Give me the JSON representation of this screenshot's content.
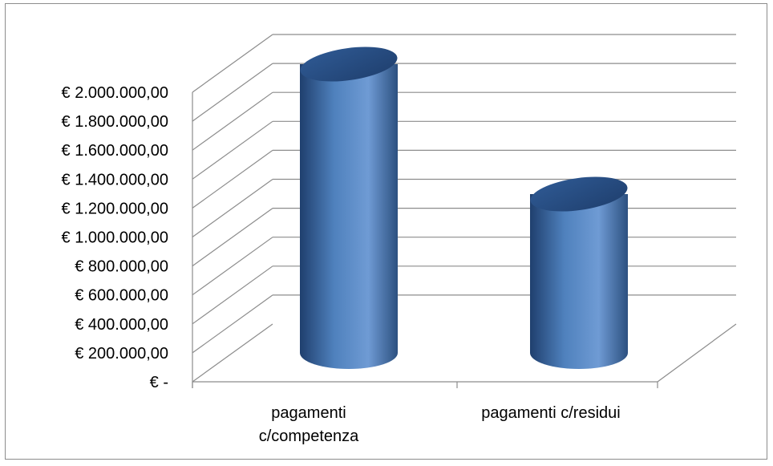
{
  "chart_data": {
    "type": "bar",
    "style": "3d-cylinder",
    "categories": [
      "pagamenti c/competenza",
      "pagamenti c/residui"
    ],
    "category_lines": [
      [
        "pagamenti",
        "c/competenza"
      ],
      [
        "pagamenti c/residui"
      ]
    ],
    "values": [
      2000000,
      1100000
    ],
    "ylim": [
      0,
      2000000
    ],
    "ytick_values": [
      0,
      200000,
      400000,
      600000,
      800000,
      1000000,
      1200000,
      1400000,
      1600000,
      1800000,
      2000000
    ],
    "ytick_labels": [
      "€ -",
      "€ 200.000,00",
      "€ 400.000,00",
      "€ 600.000,00",
      "€ 800.000,00",
      "€ 1.000.000,00",
      "€ 1.200.000,00",
      "€ 1.400.000,00",
      "€ 1.600.000,00",
      "€ 1.800.000,00",
      "€ 2.000.000,00"
    ],
    "grid": true,
    "legend": "none",
    "colors": {
      "bar": "#4f81bd",
      "bar_light": "#8db4e2",
      "bar_dark": "#2c5080",
      "grid": "#8c8c8c",
      "frame": "#8c8c8c"
    }
  }
}
